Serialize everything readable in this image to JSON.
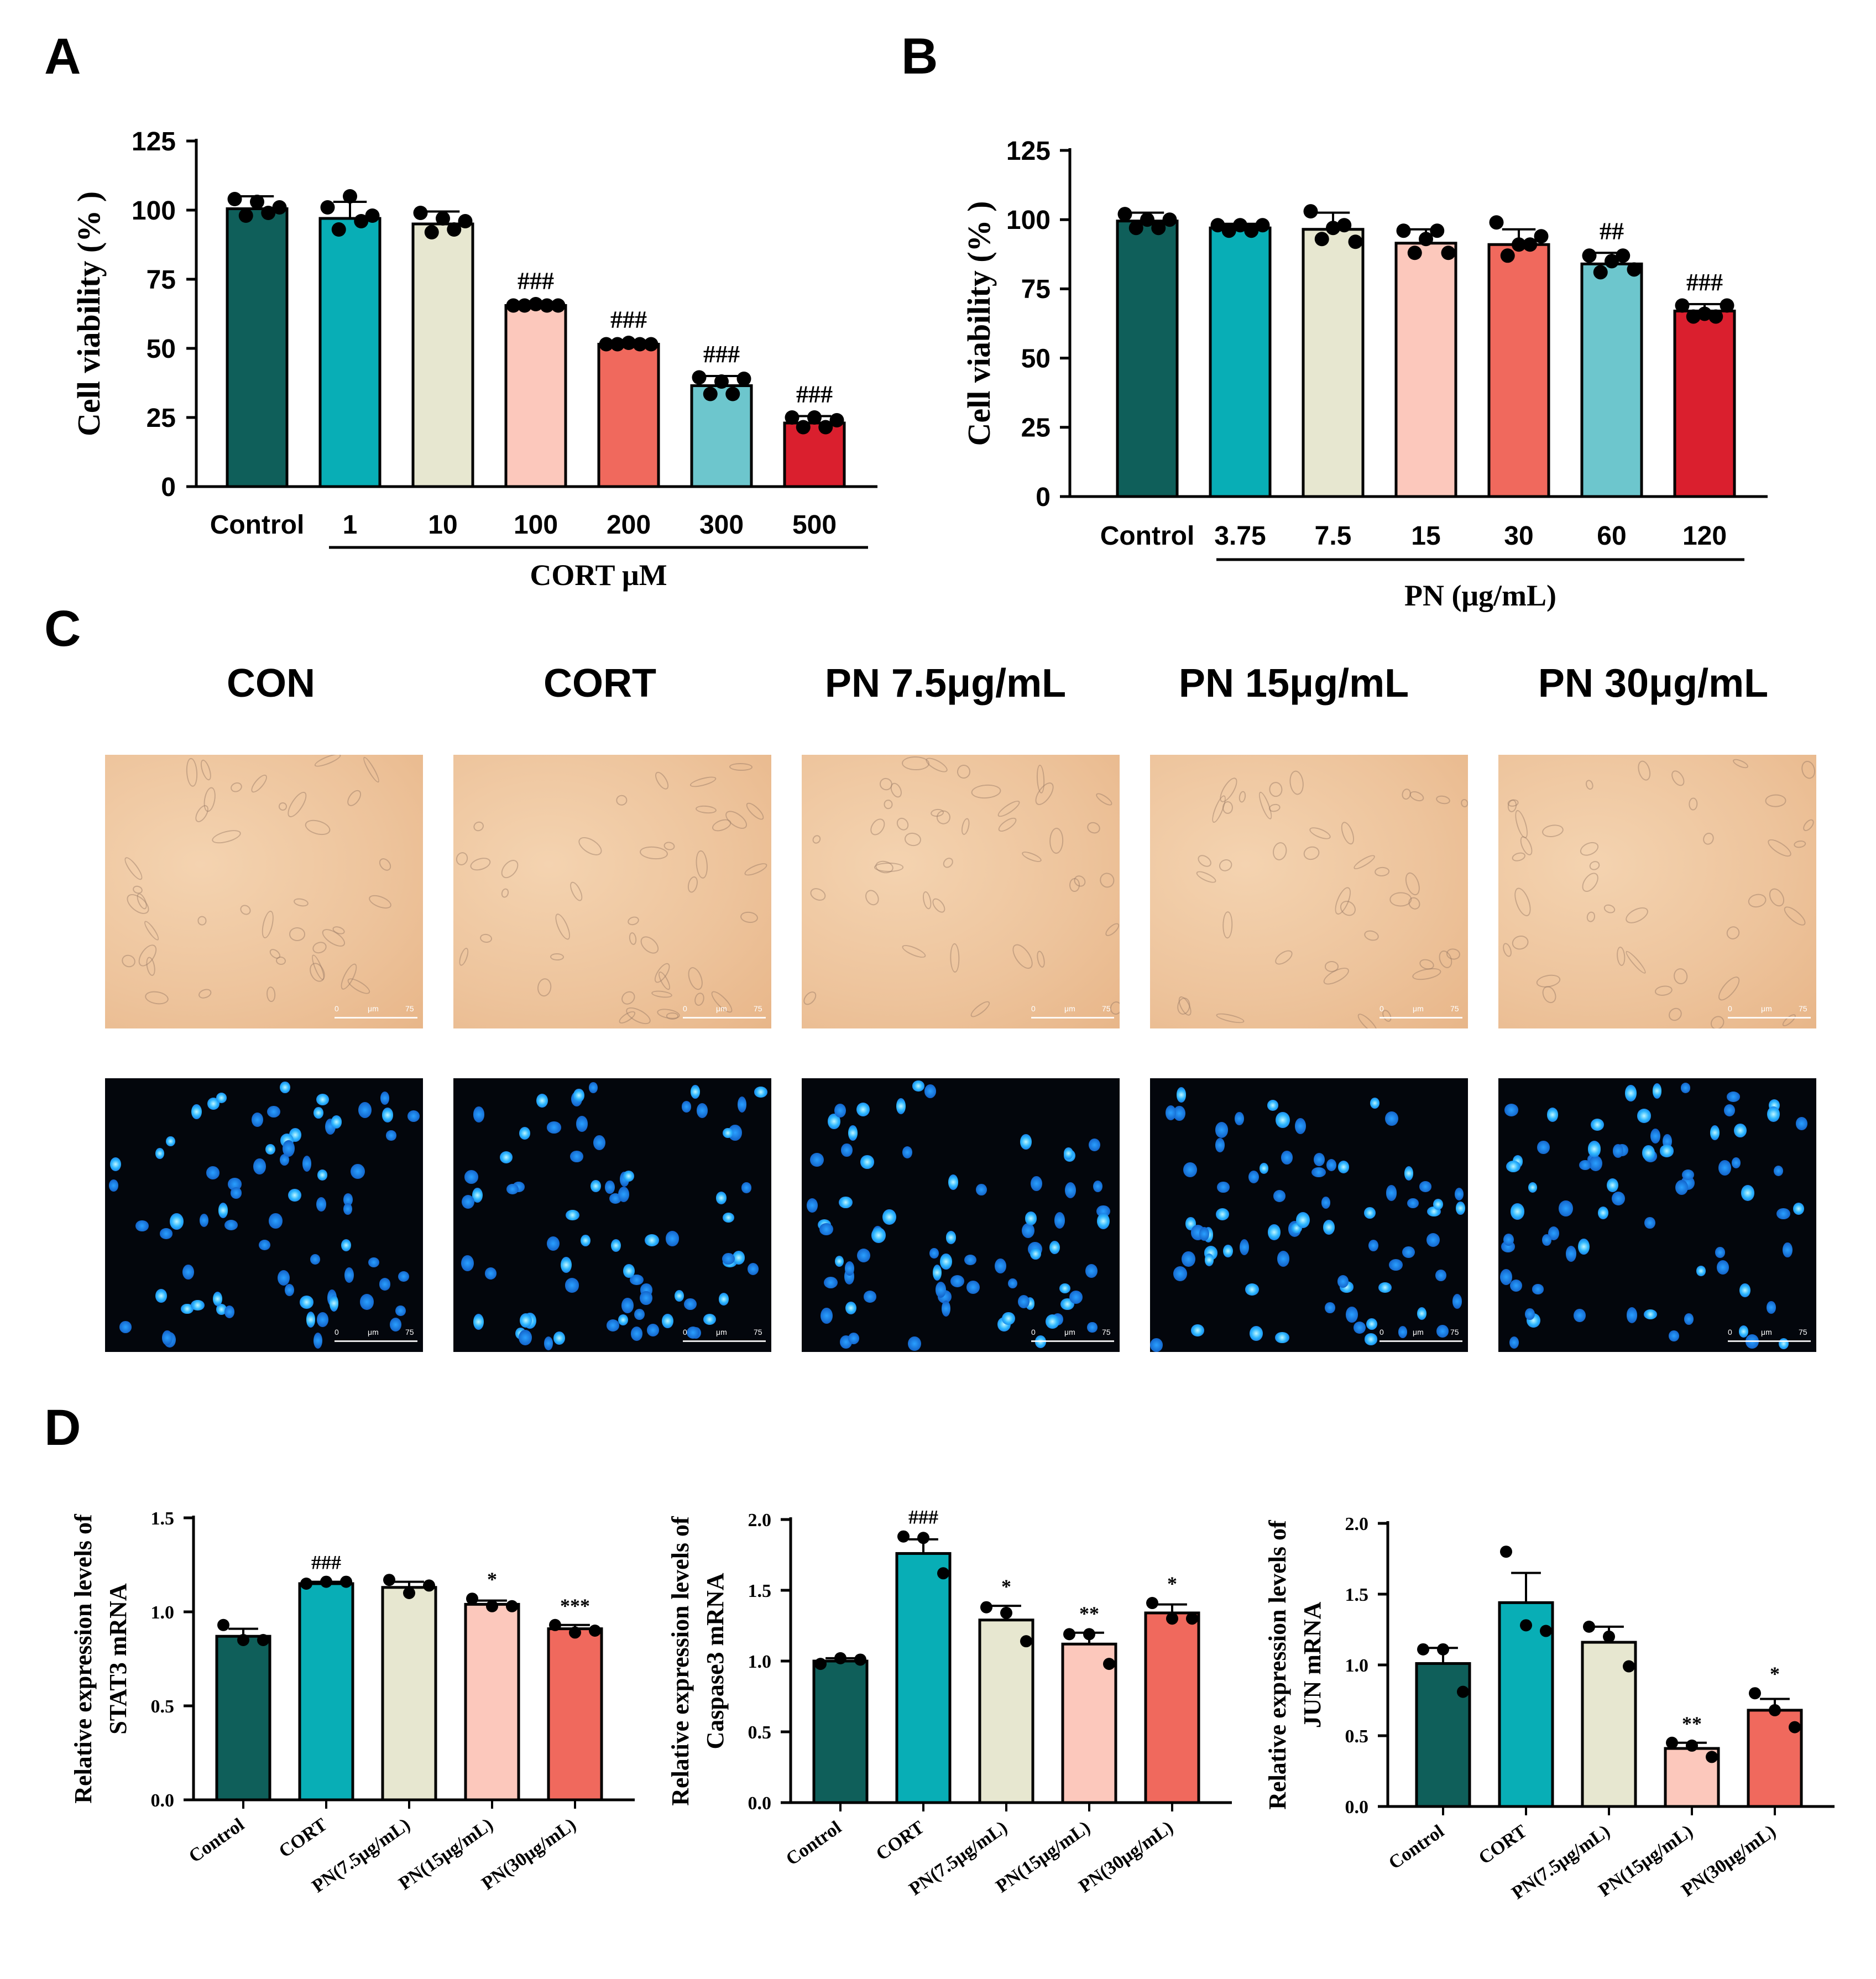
{
  "panels": {
    "A": "A",
    "B": "B",
    "C": "C",
    "D": "D"
  },
  "chart_data": [
    {
      "id": "A",
      "type": "bar",
      "ylabel": "Cell viability (% )",
      "xgroup_label": "CORT μM",
      "categories": [
        "Control",
        "1",
        "10",
        "100",
        "200",
        "300",
        "500"
      ],
      "values": [
        100.5,
        97,
        95,
        65.5,
        51.5,
        36.5,
        23
      ],
      "errors": [
        4.5,
        6,
        4.5,
        1,
        1,
        3.5,
        2.5
      ],
      "points": [
        [
          104,
          98,
          103,
          99,
          101
        ],
        [
          101,
          93,
          105,
          96,
          98
        ],
        [
          99,
          92,
          97,
          93,
          96
        ],
        [
          65.5,
          65.5,
          66,
          65.5,
          65.5
        ],
        [
          51.5,
          51.5,
          52,
          51.5,
          51.5
        ],
        [
          39.5,
          33.5,
          38,
          33.5,
          39
        ],
        [
          25,
          21.5,
          25,
          21.5,
          24
        ]
      ],
      "significance": [
        "",
        "",
        "",
        "###",
        "###",
        "###",
        "###"
      ],
      "colors": [
        "#0f5f5a",
        "#08aeb6",
        "#e7e7d0",
        "#fcc8bc",
        "#f0695d",
        "#6dc6cd",
        "#da1f2e"
      ],
      "ylim": [
        0,
        125
      ],
      "yticks": [
        0,
        25,
        50,
        75,
        100,
        125
      ]
    },
    {
      "id": "B",
      "type": "bar",
      "ylabel": "Cell viability (% )",
      "xgroup_label": "PN (μg/mL)",
      "categories": [
        "Control",
        "3.75",
        "7.5",
        "15",
        "30",
        "60",
        "120"
      ],
      "values": [
        99.5,
        97,
        96.5,
        91.5,
        91,
        84,
        67
      ],
      "errors": [
        3,
        1.5,
        6,
        5,
        5.5,
        4,
        2.5
      ],
      "points": [
        [
          102,
          97,
          100,
          97,
          100
        ],
        [
          98,
          96,
          98,
          96,
          98
        ],
        [
          103,
          93,
          97,
          98,
          92
        ],
        [
          96,
          88,
          93,
          96,
          88
        ],
        [
          99,
          87,
          91,
          91,
          94
        ],
        [
          87,
          81,
          85,
          87,
          82
        ],
        [
          69,
          65,
          66,
          65,
          69
        ]
      ],
      "significance": [
        "",
        "",
        "",
        "",
        "",
        "##",
        "###"
      ],
      "colors": [
        "#0f5f5a",
        "#08aeb6",
        "#e7e7d0",
        "#fcc8bc",
        "#f0695d",
        "#6dc6cd",
        "#da1f2e"
      ],
      "ylim": [
        0,
        125
      ],
      "yticks": [
        0,
        25,
        50,
        75,
        100,
        125
      ]
    },
    {
      "id": "D1",
      "type": "bar",
      "ylabel_line1": "Relative expression  levels of",
      "ylabel_line2": "STAT3 mRNA",
      "categories": [
        "Control",
        "CORT",
        "PN(7.5μg/mL)",
        "PN(15μg/mL)",
        "PN(30μg/mL)"
      ],
      "values": [
        0.87,
        1.15,
        1.13,
        1.04,
        0.91
      ],
      "errors": [
        0.04,
        0.01,
        0.03,
        0.02,
        0.02
      ],
      "points": [
        [
          0.93,
          0.85,
          0.85
        ],
        [
          1.15,
          1.16,
          1.16
        ],
        [
          1.17,
          1.1,
          1.14
        ],
        [
          1.07,
          1.03,
          1.03
        ],
        [
          0.93,
          0.89,
          0.9
        ]
      ],
      "significance": [
        "",
        "###",
        "",
        "*",
        "***"
      ],
      "colors": [
        "#0f5f5a",
        "#08aeb6",
        "#e7e7d0",
        "#fcc8bc",
        "#f0695d"
      ],
      "ylim": [
        0,
        1.5
      ],
      "yticks": [
        "0.0",
        "0.5",
        "1.0",
        "1.5"
      ]
    },
    {
      "id": "D2",
      "type": "bar",
      "ylabel_line1": "Relative expression  levels of",
      "ylabel_line2": "Caspase3 mRNA",
      "categories": [
        "Control",
        "CORT",
        "PN(7.5μg/mL)",
        "PN(15μg/mL)",
        "PN(30μg/mL)"
      ],
      "values": [
        1.0,
        1.76,
        1.29,
        1.12,
        1.34
      ],
      "errors": [
        0.02,
        0.1,
        0.1,
        0.08,
        0.06
      ],
      "points": [
        [
          0.98,
          1.02,
          1.01
        ],
        [
          1.88,
          1.87,
          1.62
        ],
        [
          1.38,
          1.34,
          1.14
        ],
        [
          1.19,
          1.19,
          0.98
        ],
        [
          1.41,
          1.3,
          1.3
        ]
      ],
      "significance": [
        "",
        "###",
        "*",
        "**",
        "*"
      ],
      "colors": [
        "#0f5f5a",
        "#08aeb6",
        "#e7e7d0",
        "#fcc8bc",
        "#f0695d"
      ],
      "ylim": [
        0,
        2.0
      ],
      "yticks": [
        "0.0",
        "0.5",
        "1.0",
        "1.5",
        "2.0"
      ]
    },
    {
      "id": "D3",
      "type": "bar",
      "ylabel_line1": "Relative expression  levels of",
      "ylabel_line2": "JUN mRNA",
      "categories": [
        "Control",
        "CORT",
        "PN(7.5μg/mL)",
        "PN(15μg/mL)",
        "PN(30μg/mL)"
      ],
      "values": [
        1.01,
        1.44,
        1.16,
        0.41,
        0.68
      ],
      "errors": [
        0.11,
        0.21,
        0.11,
        0.04,
        0.08
      ],
      "points": [
        [
          1.11,
          1.11,
          0.81
        ],
        [
          1.8,
          1.28,
          1.24
        ],
        [
          1.27,
          1.2,
          0.99
        ],
        [
          0.45,
          0.43,
          0.35
        ],
        [
          0.8,
          0.68,
          0.56
        ]
      ],
      "significance": [
        "",
        "",
        "",
        "**",
        "*"
      ],
      "colors": [
        "#0f5f5a",
        "#08aeb6",
        "#e7e7d0",
        "#fcc8bc",
        "#f0695d"
      ],
      "ylim": [
        0,
        2.0
      ],
      "yticks": [
        "0.0",
        "0.5",
        "1.0",
        "1.5",
        "2.0"
      ]
    }
  ],
  "panel_c": {
    "columns": [
      "CON",
      "CORT",
      "PN 7.5μg/mL",
      "PN 15μg/mL",
      "PN 30μg/mL"
    ],
    "scale_start": "0",
    "scale_unit": "μm",
    "scale_end": "75"
  }
}
